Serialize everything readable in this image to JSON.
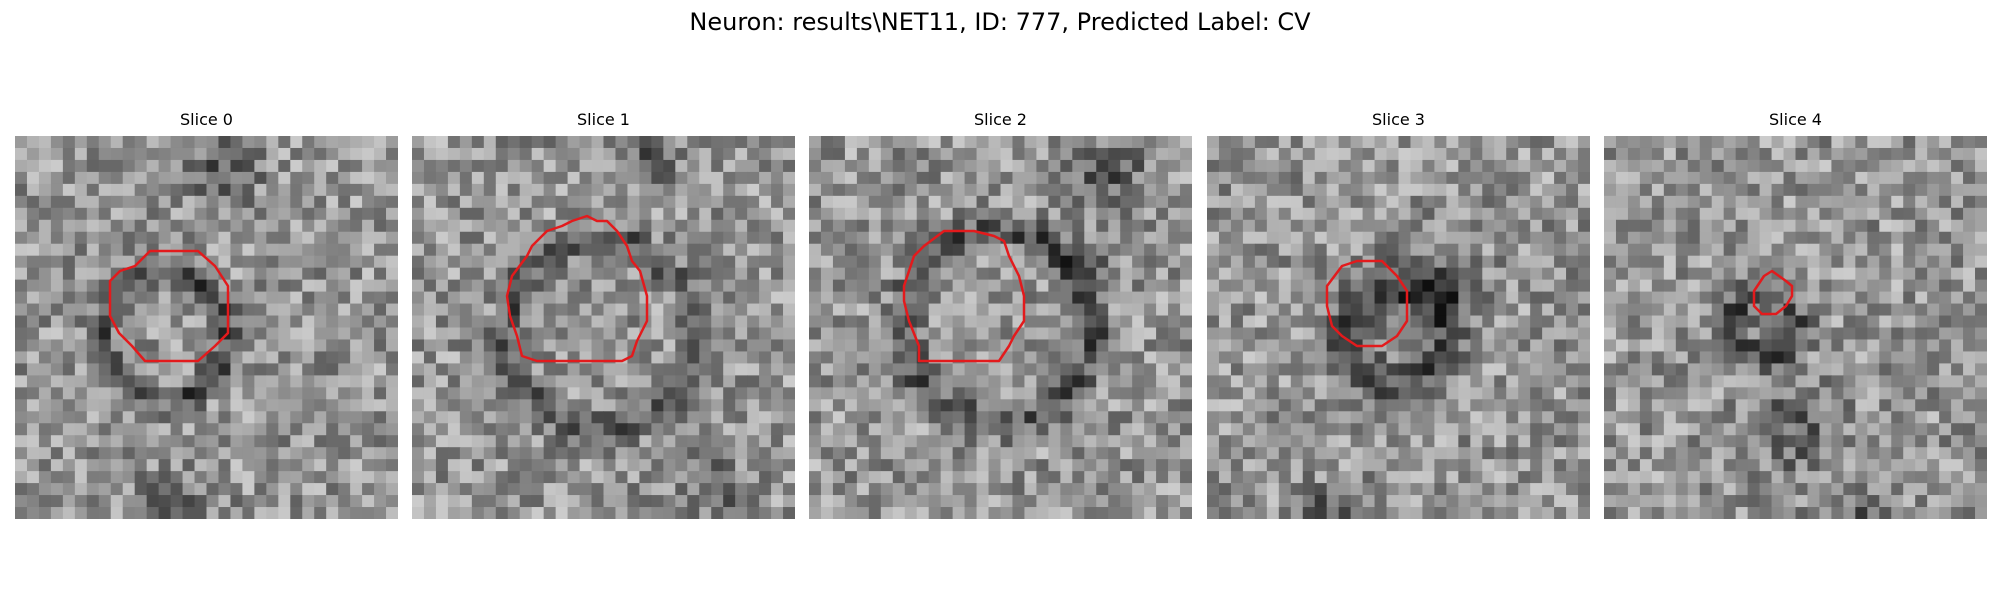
{
  "figure": {
    "title": "Neuron: results\\NET11, ID: 777, Predicted Label: CV"
  },
  "panels": [
    {
      "title": "Slice 0",
      "outline_color": "#e31a1c"
    },
    {
      "title": "Slice 1",
      "outline_color": "#e31a1c"
    },
    {
      "title": "Slice 2",
      "outline_color": "#e31a1c"
    },
    {
      "title": "Slice 3",
      "outline_color": "#e31a1c"
    },
    {
      "title": "Slice 4",
      "outline_color": "#e31a1c"
    }
  ]
}
